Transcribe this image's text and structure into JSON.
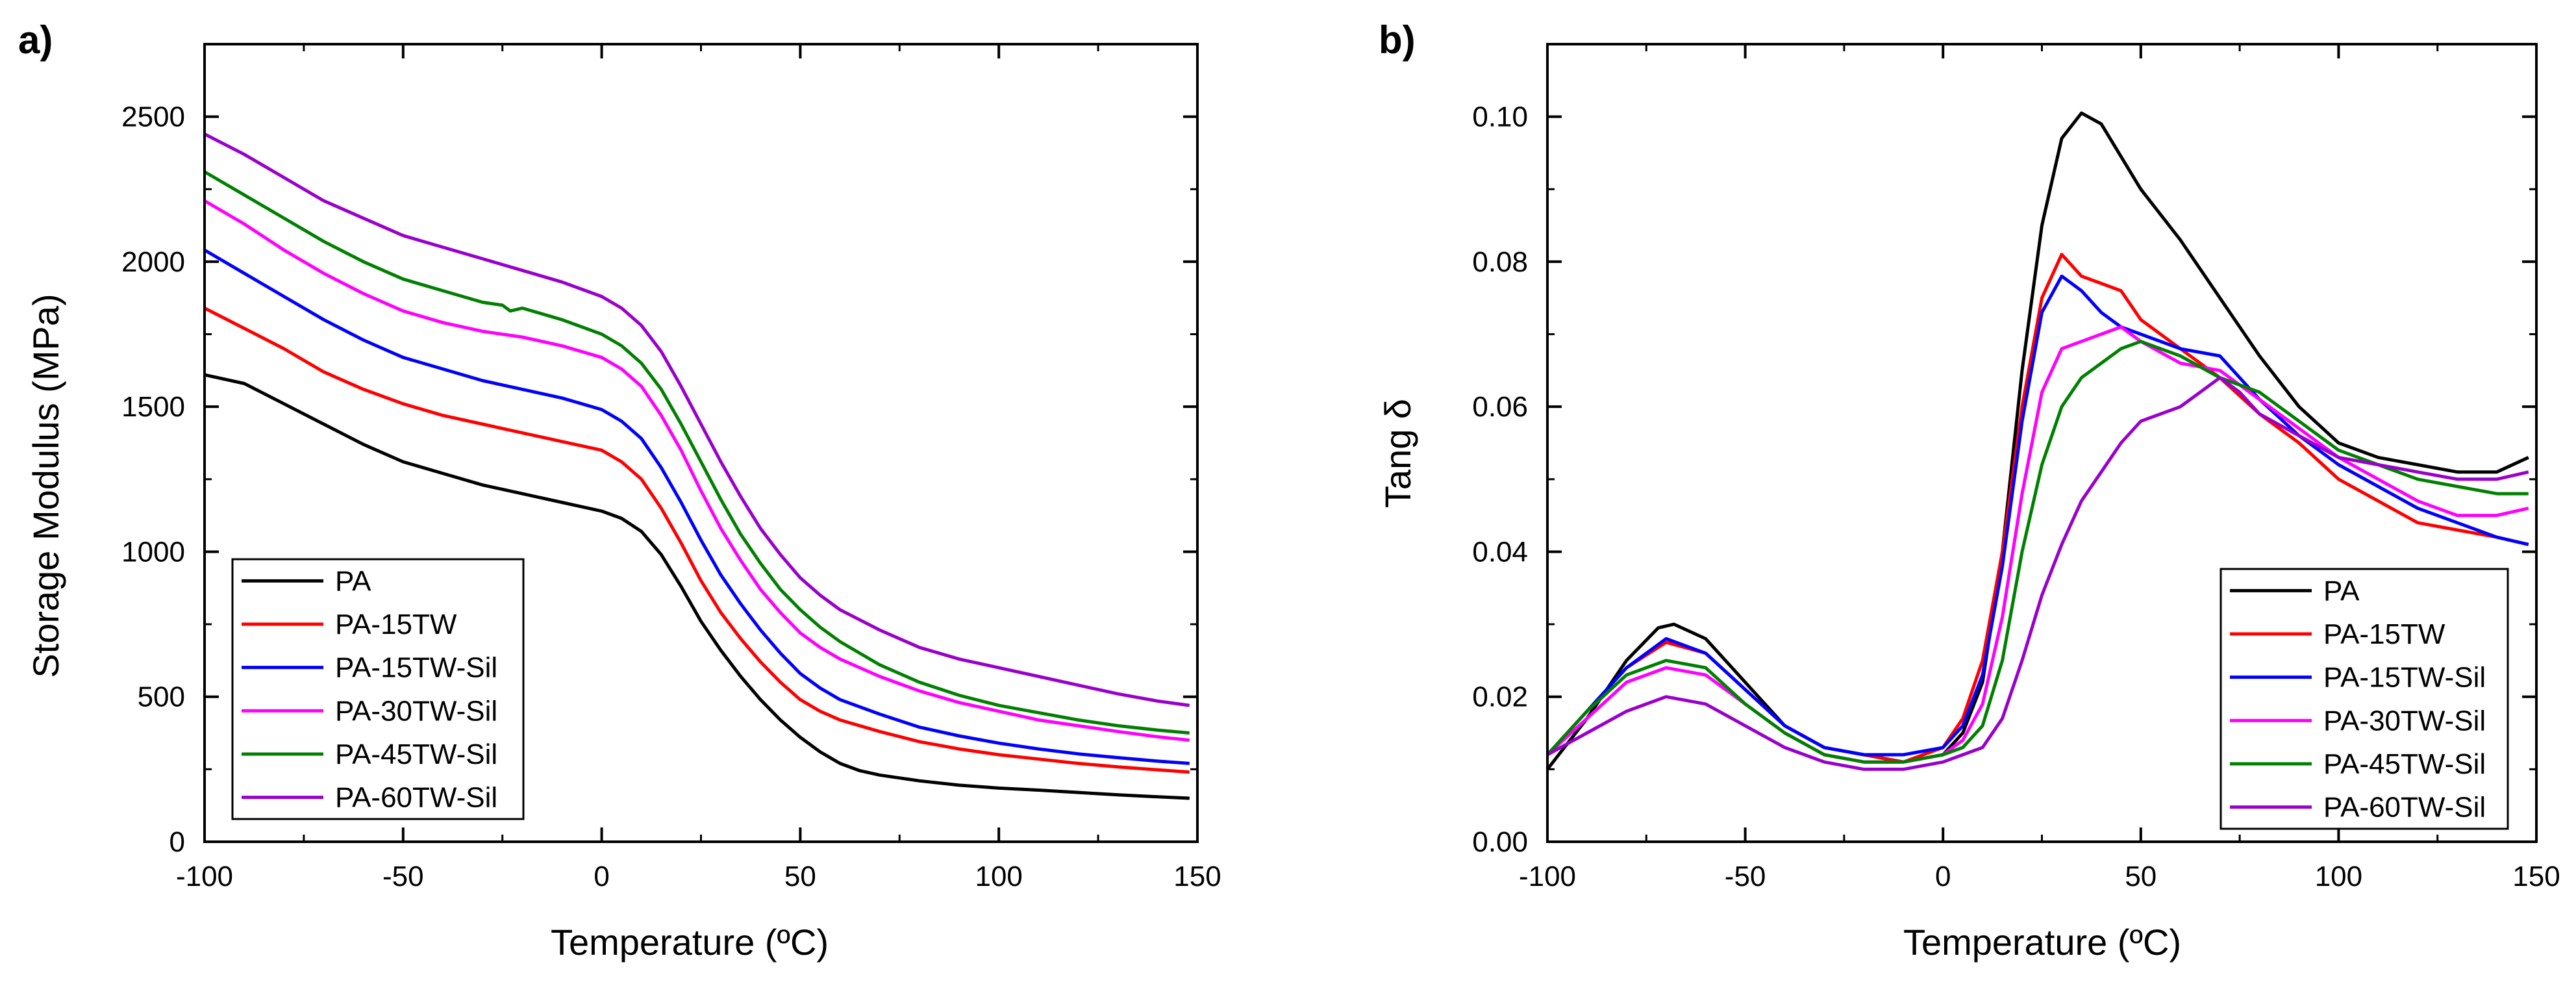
{
  "chart_data": [
    {
      "type": "line",
      "panel_label": "a)",
      "title": "",
      "xlabel": "Temperature (ºC)",
      "ylabel": "Storage Modulus (MPa)",
      "xlim": [
        -100,
        150
      ],
      "ylim": [
        0,
        2750
      ],
      "xticks": [
        -100,
        -50,
        0,
        50,
        100,
        150
      ],
      "yticks": [
        0,
        500,
        1000,
        1500,
        2000,
        2500
      ],
      "grid": false,
      "legend_position": "bottom-left",
      "series": [
        {
          "name": "PA",
          "color": "#000000",
          "x": [
            -100,
            -90,
            -80,
            -70,
            -60,
            -50,
            -40,
            -30,
            -20,
            -10,
            0,
            5,
            10,
            15,
            20,
            25,
            30,
            35,
            40,
            45,
            50,
            55,
            60,
            65,
            70,
            80,
            90,
            100,
            110,
            120,
            130,
            140,
            148
          ],
          "y": [
            1610,
            1580,
            1510,
            1440,
            1370,
            1310,
            1270,
            1230,
            1200,
            1170,
            1140,
            1115,
            1070,
            990,
            880,
            760,
            660,
            570,
            490,
            420,
            360,
            310,
            270,
            245,
            230,
            210,
            195,
            185,
            178,
            170,
            162,
            155,
            150
          ]
        },
        {
          "name": "PA-15TW",
          "color": "#ff0000",
          "x": [
            -100,
            -90,
            -80,
            -70,
            -60,
            -50,
            -40,
            -30,
            -20,
            -10,
            0,
            5,
            10,
            15,
            20,
            25,
            30,
            35,
            40,
            45,
            50,
            55,
            60,
            70,
            80,
            90,
            100,
            110,
            120,
            130,
            140,
            148
          ],
          "y": [
            1840,
            1770,
            1700,
            1620,
            1560,
            1510,
            1470,
            1440,
            1410,
            1380,
            1350,
            1310,
            1250,
            1150,
            1030,
            900,
            790,
            700,
            620,
            550,
            490,
            450,
            420,
            380,
            345,
            320,
            300,
            285,
            270,
            258,
            248,
            240
          ]
        },
        {
          "name": "PA-15TW-Sil",
          "color": "#0000ff",
          "x": [
            -100,
            -90,
            -80,
            -70,
            -60,
            -50,
            -40,
            -30,
            -20,
            -10,
            0,
            5,
            10,
            15,
            20,
            25,
            30,
            35,
            40,
            45,
            50,
            55,
            60,
            70,
            80,
            90,
            100,
            110,
            120,
            130,
            140,
            148
          ],
          "y": [
            2040,
            1960,
            1880,
            1800,
            1730,
            1670,
            1630,
            1590,
            1560,
            1530,
            1490,
            1450,
            1390,
            1290,
            1170,
            1040,
            920,
            820,
            730,
            650,
            580,
            530,
            490,
            440,
            395,
            365,
            340,
            320,
            303,
            290,
            278,
            270
          ]
        },
        {
          "name": "PA-30TW-Sil",
          "color": "#ff00ff",
          "x": [
            -100,
            -90,
            -80,
            -70,
            -60,
            -50,
            -40,
            -30,
            -20,
            -10,
            0,
            5,
            10,
            15,
            20,
            25,
            30,
            35,
            40,
            45,
            50,
            55,
            60,
            70,
            80,
            90,
            100,
            110,
            120,
            130,
            140,
            148
          ],
          "y": [
            2210,
            2130,
            2040,
            1960,
            1890,
            1830,
            1790,
            1760,
            1740,
            1710,
            1670,
            1630,
            1570,
            1470,
            1350,
            1210,
            1080,
            970,
            870,
            790,
            720,
            670,
            630,
            570,
            520,
            480,
            450,
            420,
            400,
            380,
            362,
            350
          ]
        },
        {
          "name": "PA-45TW-Sil",
          "color": "#008000",
          "x": [
            -100,
            -90,
            -80,
            -70,
            -60,
            -50,
            -40,
            -30,
            -25,
            -23,
            -20,
            -10,
            0,
            5,
            10,
            15,
            20,
            25,
            30,
            35,
            40,
            45,
            50,
            55,
            60,
            70,
            80,
            90,
            100,
            110,
            120,
            130,
            140,
            148
          ],
          "y": [
            2310,
            2230,
            2150,
            2070,
            2000,
            1940,
            1900,
            1860,
            1850,
            1830,
            1840,
            1800,
            1750,
            1710,
            1650,
            1560,
            1440,
            1310,
            1180,
            1060,
            960,
            870,
            800,
            740,
            690,
            610,
            550,
            505,
            470,
            445,
            420,
            400,
            385,
            375
          ]
        },
        {
          "name": "PA-60TW-Sil",
          "color": "#9900cc",
          "x": [
            -100,
            -90,
            -80,
            -70,
            -60,
            -50,
            -40,
            -30,
            -20,
            -10,
            0,
            5,
            10,
            15,
            20,
            25,
            30,
            35,
            40,
            45,
            50,
            55,
            60,
            70,
            80,
            90,
            100,
            110,
            120,
            130,
            140,
            148
          ],
          "y": [
            2440,
            2370,
            2290,
            2210,
            2150,
            2090,
            2050,
            2010,
            1970,
            1930,
            1880,
            1840,
            1780,
            1690,
            1570,
            1440,
            1310,
            1190,
            1080,
            990,
            910,
            850,
            800,
            730,
            670,
            630,
            600,
            570,
            540,
            510,
            485,
            470
          ]
        }
      ]
    },
    {
      "type": "line",
      "panel_label": "b)",
      "title": "",
      "xlabel": "Temperature (ºC)",
      "ylabel": "Tang δ",
      "xlim": [
        -100,
        150
      ],
      "ylim": [
        0.0,
        0.11
      ],
      "xticks": [
        -100,
        -50,
        0,
        50,
        100,
        150
      ],
      "yticks": [
        0.0,
        0.02,
        0.04,
        0.06,
        0.08,
        0.1
      ],
      "ytick_labels": [
        "0.00",
        "0.02",
        "0.04",
        "0.06",
        "0.08",
        "0.10"
      ],
      "grid": false,
      "legend_position": "bottom-right",
      "series": [
        {
          "name": "PA",
          "color": "#000000",
          "x": [
            -100,
            -90,
            -80,
            -72,
            -68,
            -60,
            -50,
            -40,
            -30,
            -20,
            -10,
            0,
            5,
            10,
            15,
            20,
            25,
            30,
            35,
            40,
            50,
            60,
            70,
            80,
            90,
            100,
            110,
            120,
            130,
            140,
            148
          ],
          "y": [
            0.01,
            0.017,
            0.025,
            0.0295,
            0.03,
            0.028,
            0.022,
            0.016,
            0.013,
            0.012,
            0.011,
            0.012,
            0.015,
            0.022,
            0.04,
            0.065,
            0.085,
            0.097,
            0.1005,
            0.099,
            0.09,
            0.083,
            0.075,
            0.067,
            0.06,
            0.055,
            0.053,
            0.052,
            0.051,
            0.051,
            0.053
          ]
        },
        {
          "name": "PA-15TW",
          "color": "#ff0000",
          "x": [
            -100,
            -90,
            -80,
            -70,
            -60,
            -50,
            -40,
            -30,
            -20,
            -10,
            0,
            5,
            10,
            15,
            20,
            25,
            30,
            35,
            40,
            45,
            50,
            60,
            70,
            80,
            90,
            100,
            110,
            120,
            130,
            140,
            148
          ],
          "y": [
            0.012,
            0.018,
            0.024,
            0.0275,
            0.026,
            0.021,
            0.016,
            0.013,
            0.012,
            0.011,
            0.013,
            0.017,
            0.025,
            0.04,
            0.06,
            0.075,
            0.081,
            0.078,
            0.077,
            0.076,
            0.072,
            0.068,
            0.064,
            0.059,
            0.055,
            0.05,
            0.047,
            0.044,
            0.043,
            0.042,
            0.041
          ]
        },
        {
          "name": "PA-15TW-Sil",
          "color": "#0000ff",
          "x": [
            -100,
            -90,
            -80,
            -70,
            -60,
            -50,
            -40,
            -30,
            -20,
            -10,
            0,
            5,
            10,
            15,
            20,
            25,
            30,
            35,
            40,
            45,
            50,
            60,
            70,
            80,
            90,
            100,
            110,
            120,
            130,
            140,
            148
          ],
          "y": [
            0.012,
            0.018,
            0.024,
            0.028,
            0.026,
            0.021,
            0.016,
            0.013,
            0.012,
            0.012,
            0.013,
            0.016,
            0.023,
            0.038,
            0.058,
            0.073,
            0.078,
            0.076,
            0.073,
            0.071,
            0.07,
            0.068,
            0.067,
            0.061,
            0.056,
            0.052,
            0.049,
            0.046,
            0.044,
            0.042,
            0.041
          ]
        },
        {
          "name": "PA-30TW-Sil",
          "color": "#ff00ff",
          "x": [
            -100,
            -90,
            -80,
            -70,
            -60,
            -50,
            -40,
            -30,
            -20,
            -10,
            0,
            5,
            10,
            15,
            20,
            25,
            30,
            35,
            40,
            45,
            50,
            60,
            70,
            80,
            90,
            100,
            110,
            120,
            130,
            140,
            148
          ],
          "y": [
            0.012,
            0.017,
            0.022,
            0.024,
            0.023,
            0.019,
            0.015,
            0.012,
            0.011,
            0.011,
            0.012,
            0.014,
            0.019,
            0.031,
            0.048,
            0.062,
            0.068,
            0.069,
            0.07,
            0.071,
            0.069,
            0.066,
            0.065,
            0.061,
            0.057,
            0.053,
            0.05,
            0.047,
            0.045,
            0.045,
            0.046
          ]
        },
        {
          "name": "PA-45TW-Sil",
          "color": "#008000",
          "x": [
            -100,
            -90,
            -80,
            -70,
            -60,
            -50,
            -40,
            -30,
            -20,
            -10,
            0,
            5,
            10,
            15,
            20,
            25,
            30,
            35,
            40,
            45,
            50,
            60,
            70,
            80,
            90,
            100,
            110,
            120,
            130,
            140,
            148
          ],
          "y": [
            0.012,
            0.018,
            0.023,
            0.025,
            0.024,
            0.019,
            0.015,
            0.012,
            0.011,
            0.011,
            0.012,
            0.013,
            0.016,
            0.025,
            0.04,
            0.052,
            0.06,
            0.064,
            0.066,
            0.068,
            0.069,
            0.067,
            0.064,
            0.062,
            0.058,
            0.054,
            0.052,
            0.05,
            0.049,
            0.048,
            0.048
          ]
        },
        {
          "name": "PA-60TW-Sil",
          "color": "#9900cc",
          "x": [
            -100,
            -90,
            -80,
            -70,
            -60,
            -50,
            -40,
            -30,
            -20,
            -10,
            0,
            5,
            10,
            15,
            20,
            25,
            30,
            35,
            40,
            45,
            50,
            60,
            65,
            70,
            75,
            80,
            90,
            100,
            110,
            120,
            130,
            140,
            148
          ],
          "y": [
            0.012,
            0.015,
            0.018,
            0.02,
            0.019,
            0.016,
            0.013,
            0.011,
            0.01,
            0.01,
            0.011,
            0.012,
            0.013,
            0.017,
            0.025,
            0.034,
            0.041,
            0.047,
            0.051,
            0.055,
            0.058,
            0.06,
            0.062,
            0.064,
            0.062,
            0.059,
            0.056,
            0.053,
            0.052,
            0.051,
            0.05,
            0.05,
            0.051
          ]
        }
      ]
    }
  ]
}
